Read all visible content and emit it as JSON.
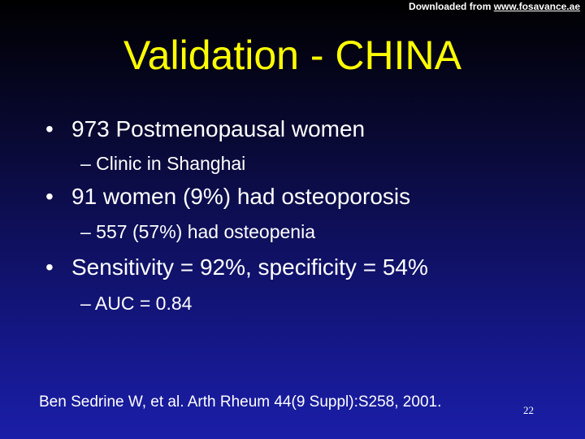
{
  "header": {
    "prefix": "Downloaded from ",
    "link": "www.fosavance.ae"
  },
  "slide": {
    "title": "Validation - CHINA",
    "bullet_symbol": "•",
    "bullets": [
      {
        "text": "973 Postmenopausal women",
        "sub": "– Clinic in Shanghai"
      },
      {
        "text": "91 women (9%) had osteoporosis",
        "sub": "– 557 (57%) had osteopenia"
      },
      {
        "text": "Sensitivity = 92%, specificity = 54%",
        "sub": "– AUC = 0.84"
      }
    ],
    "citation": "Ben Sedrine W, et al. Arth Rheum 44(9 Suppl):S258, 2001.",
    "page_number": "22"
  },
  "colors": {
    "title": "#ffff00",
    "text": "#ffffff",
    "background_top": "#000000",
    "background_bottom": "#1a1ea8"
  }
}
